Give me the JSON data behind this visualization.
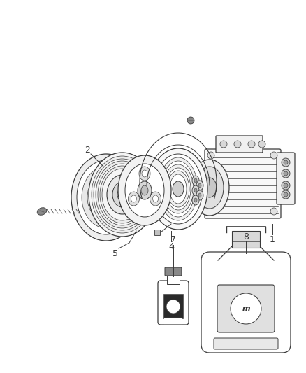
{
  "background_color": "#ffffff",
  "line_color": "#3a3a3a",
  "label_color": "#3a3a3a",
  "label_fontsize": 9,
  "fig_width": 4.38,
  "fig_height": 5.33,
  "dpi": 100
}
